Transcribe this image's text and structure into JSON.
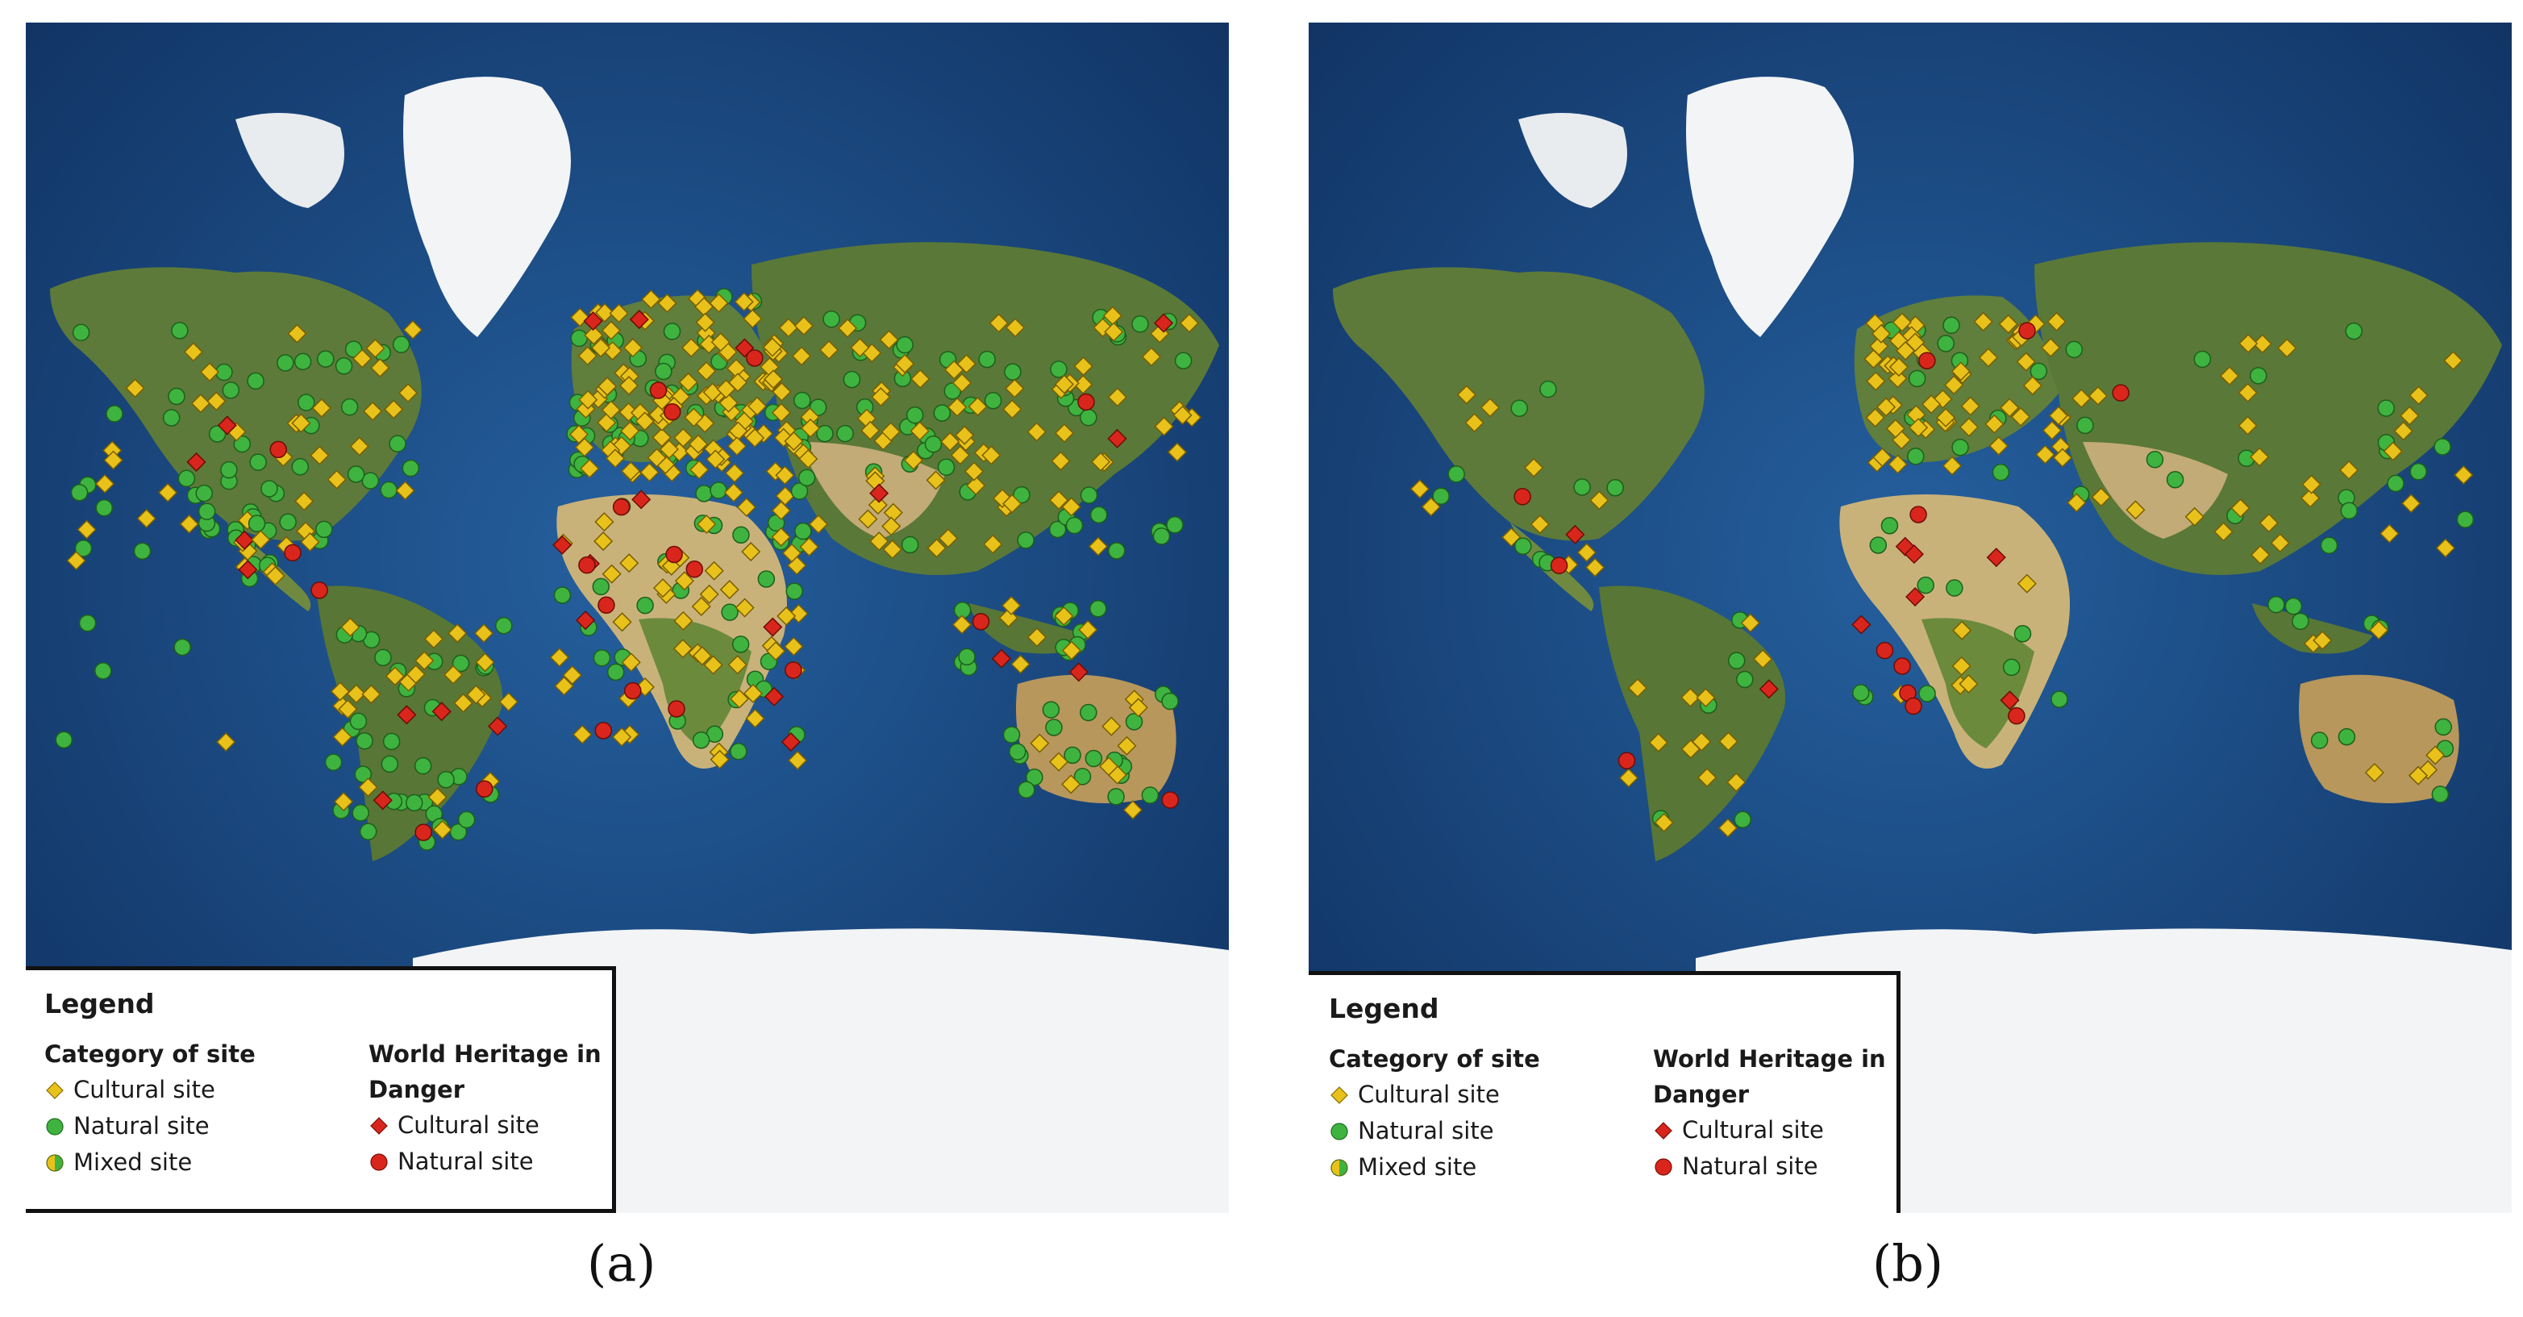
{
  "panels": [
    {
      "caption": "(a)",
      "legend": {
        "title": "Legend",
        "category_heading": "Category of site",
        "danger_heading": "World Heritage in Danger",
        "category_items": [
          "Cultural site",
          "Natural site",
          "Mixed site"
        ],
        "danger_items": [
          "Cultural site",
          "Natural site"
        ]
      }
    },
    {
      "caption": "(b)",
      "legend": {
        "title": "Legend",
        "category_heading": "Category of site",
        "danger_heading": "World Heritage in Danger",
        "category_items": [
          "Cultural site",
          "Natural site",
          "Mixed site"
        ],
        "danger_items": [
          "Cultural site",
          "Natural site"
        ]
      }
    }
  ],
  "colors": {
    "cultural": "#e8c21a",
    "natural": "#3fb33f",
    "danger": "#d9261c",
    "ocean": "#1b4a86",
    "land": "#5d7a3a",
    "desert": "#c9b27a",
    "ice": "#f2f4f6"
  },
  "icons": {
    "cultural": "yellow-diamond-icon",
    "natural": "green-circle-icon",
    "mixed": "half-yellow-half-green-circle-icon",
    "danger_cultural": "red-diamond-icon",
    "danger_natural": "red-circle-icon"
  }
}
